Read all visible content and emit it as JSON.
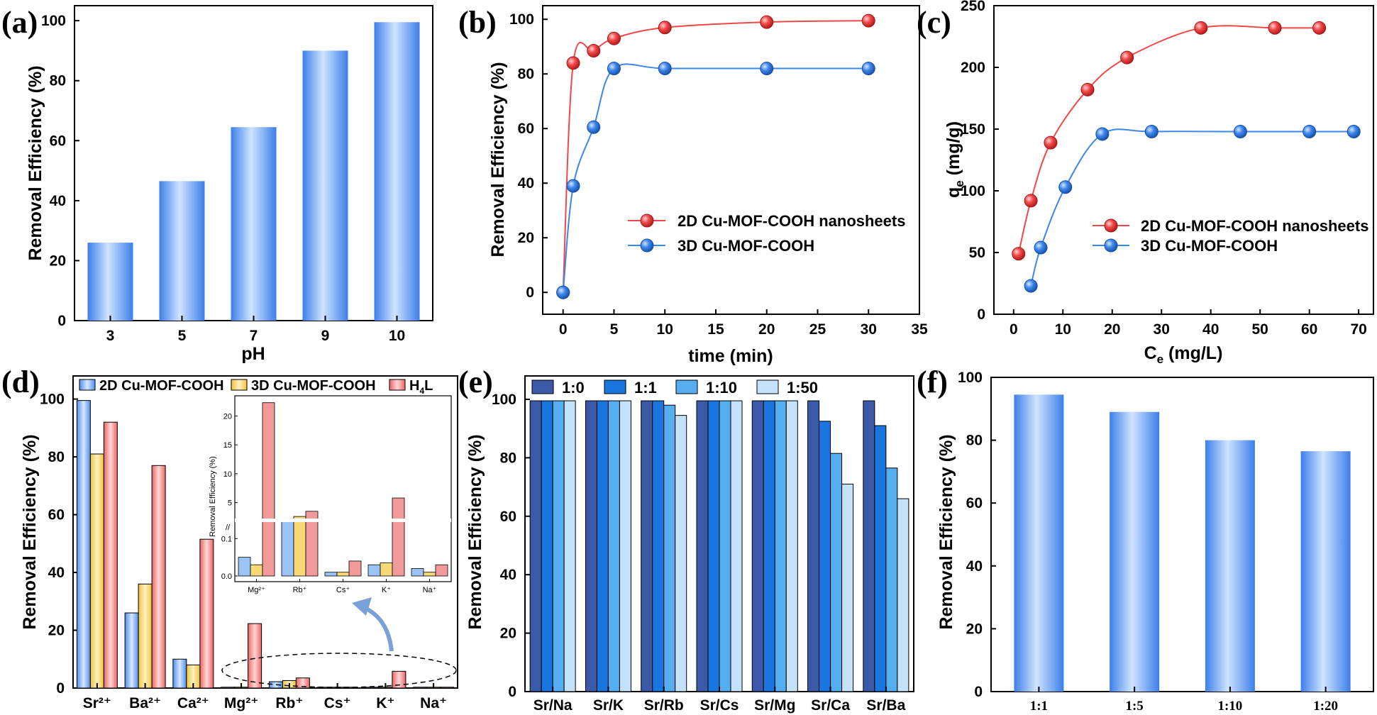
{
  "panels": {
    "a": "(a)",
    "b": "(b)",
    "c": "(c)",
    "d": "(d)",
    "e": "(e)",
    "f": "(f)"
  },
  "colors": {
    "blue_bar": "#4f8ff0",
    "red": "#f04848",
    "blue": "#3f86ea",
    "yellow": "#f5cf55",
    "pink": "#f27c7c",
    "dark_navy": "#3a5aa8",
    "mid_blue": "#1976e0",
    "light_blue": "#55aef0",
    "pale_blue": "#c4e2fa"
  },
  "chart_data": [
    {
      "panel": "a",
      "type": "bar",
      "categories": [
        "3",
        "5",
        "7",
        "9",
        "10"
      ],
      "values": [
        26,
        46.5,
        64.5,
        90,
        99.5
      ],
      "xlabel": "pH",
      "ylabel": "Removal Efficiency (%)",
      "ylim": [
        0,
        100
      ],
      "yticks": [
        0,
        20,
        40,
        60,
        80,
        100
      ]
    },
    {
      "panel": "b",
      "type": "line",
      "xlabel": "time (min)",
      "ylabel": "Removal Efficiency (%)",
      "xlim": [
        -2,
        35
      ],
      "ylim": [
        -8,
        105
      ],
      "xticks": [
        0,
        5,
        10,
        15,
        20,
        25,
        30,
        35
      ],
      "yticks": [
        0,
        20,
        40,
        60,
        80,
        100
      ],
      "legend_position": "center-right",
      "series": [
        {
          "name": "2D Cu-MOF-COOH nanosheets",
          "x": [
            0,
            1,
            3,
            5,
            10,
            20,
            30
          ],
          "y": [
            0,
            84,
            88.5,
            93,
            97,
            99,
            99.5
          ]
        },
        {
          "name": "3D Cu-MOF-COOH",
          "x": [
            0,
            1,
            3,
            5,
            10,
            20,
            30
          ],
          "y": [
            0,
            39,
            60.5,
            82,
            82,
            82,
            82
          ]
        }
      ]
    },
    {
      "panel": "c",
      "type": "line",
      "xlabel": "Ce (mg/L)",
      "ylabel": "qe (mg/g)",
      "xlabel_main": "C",
      "xlabel_sub": "e",
      "xlabel_rest": " (mg/L)",
      "ylabel_main": "q",
      "ylabel_sub": "e",
      "ylabel_rest": " (mg/g)",
      "xlim": [
        -4,
        73
      ],
      "ylim": [
        0,
        250
      ],
      "xticks": [
        0,
        10,
        20,
        30,
        40,
        50,
        60,
        70
      ],
      "yticks": [
        0,
        50,
        100,
        150,
        200,
        250
      ],
      "legend_position": "center-right",
      "series": [
        {
          "name": "2D Cu-MOF-COOH nanosheets",
          "x": [
            1,
            3.5,
            7.5,
            15,
            23,
            38,
            53,
            62
          ],
          "y": [
            49,
            92,
            139,
            182,
            208,
            232,
            232,
            232
          ]
        },
        {
          "name": "3D Cu-MOF-COOH",
          "x": [
            3.5,
            5.5,
            10.5,
            18,
            28,
            46,
            60,
            69
          ],
          "y": [
            23,
            54,
            103,
            146,
            148,
            148,
            148,
            148
          ]
        }
      ]
    },
    {
      "panel": "d",
      "type": "bar",
      "categories": [
        "Sr²⁺",
        "Ba²⁺",
        "Ca²⁺",
        "Mg²⁺",
        "Rb⁺",
        "Cs⁺",
        "K⁺",
        "Na⁺"
      ],
      "ylabel": "Removal Efficiency (%)",
      "ylim": [
        0,
        108
      ],
      "yticks": [
        0,
        20,
        40,
        60,
        80,
        100
      ],
      "legend_position": "top",
      "series": [
        {
          "name": "2D Cu-MOF-COOH",
          "values": [
            99.5,
            26,
            10,
            0.05,
            2.2,
            0.01,
            0.03,
            0.02
          ]
        },
        {
          "name": "3D Cu-MOF-COOH",
          "values": [
            81,
            36,
            8,
            0.03,
            2.6,
            0.01,
            0.035,
            0.01
          ]
        },
        {
          "name": "H4L",
          "values": [
            92,
            77,
            51.5,
            22.3,
            3.5,
            0.04,
            5.8,
            0.03
          ]
        }
      ],
      "inset": {
        "ylabel": "Removal Efficiency (%)",
        "categories": [
          "Mg²⁺",
          "Rb⁺",
          "Cs⁺",
          "K⁺",
          "Na⁺"
        ],
        "yticks_upper": [
          "5",
          "10",
          "15",
          "20"
        ],
        "yticks_lower": [
          "0.0",
          "0.1"
        ],
        "axis_break": "//"
      }
    },
    {
      "panel": "e",
      "type": "bar",
      "categories": [
        "Sr/Na",
        "Sr/K",
        "Sr/Rb",
        "Sr/Cs",
        "Sr/Mg",
        "Sr/Ca",
        "Sr/Ba"
      ],
      "ylabel": "Removal Efficiency (%)",
      "ylim": [
        0,
        108
      ],
      "yticks": [
        0,
        20,
        40,
        60,
        80,
        100
      ],
      "legend_position": "top",
      "series": [
        {
          "name": "1:0",
          "values": [
            99.5,
            99.5,
            99.5,
            99.5,
            99.5,
            99.5,
            99.5
          ]
        },
        {
          "name": "1:1",
          "values": [
            99.5,
            99.5,
            99.5,
            99.5,
            99.5,
            92.5,
            91
          ]
        },
        {
          "name": "1:10",
          "values": [
            99.5,
            99.5,
            98,
            99.5,
            99.5,
            81.5,
            76.5
          ]
        },
        {
          "name": "1:50",
          "values": [
            99.5,
            99.5,
            94.5,
            99.5,
            99.5,
            71,
            66
          ]
        }
      ]
    },
    {
      "panel": "f",
      "type": "bar",
      "categories": [
        "1:1",
        "1:5",
        "1:10",
        "1:20"
      ],
      "values": [
        94.5,
        89,
        80,
        76.5
      ],
      "ylabel": "Removal Efficiency (%)",
      "ylim": [
        0,
        100
      ],
      "yticks": [
        0,
        20,
        40,
        60,
        80,
        100
      ]
    }
  ]
}
